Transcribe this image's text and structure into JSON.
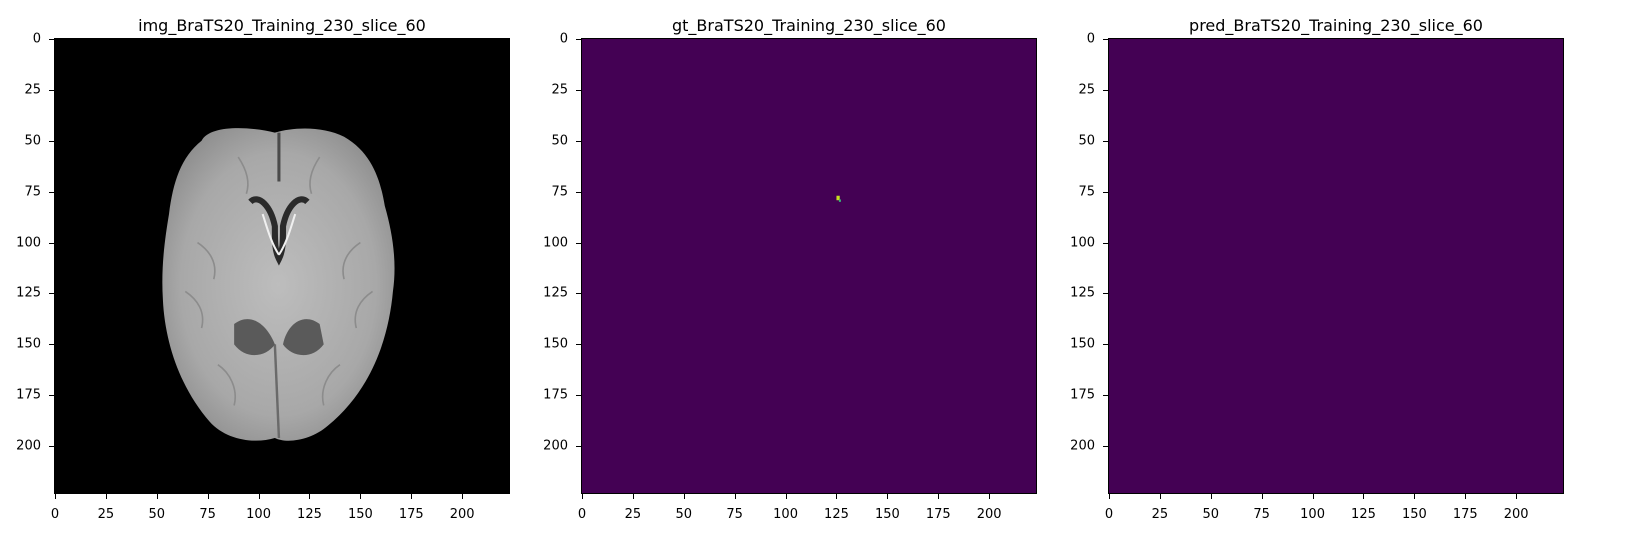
{
  "figure": {
    "panels": [
      {
        "id": "img",
        "title": "img_BraTS20_Training_230_slice_60",
        "content": "brain MRI slice (grayscale)",
        "colormap": "gray",
        "background": "#000000"
      },
      {
        "id": "gt",
        "title": "gt_BraTS20_Training_230_slice_60",
        "content": "ground truth mask",
        "colormap": "viridis",
        "background": "#440154",
        "highlight_color": "#c8e020",
        "highlight_point": {
          "x": 126,
          "y": 78
        }
      },
      {
        "id": "pred",
        "title": "pred_BraTS20_Training_230_slice_60",
        "content": "predicted mask (empty)",
        "colormap": "viridis",
        "background": "#440154"
      }
    ],
    "x_ticks": [
      "0",
      "25",
      "50",
      "75",
      "100",
      "125",
      "150",
      "175",
      "200"
    ],
    "y_ticks": [
      "0",
      "25",
      "50",
      "75",
      "100",
      "125",
      "150",
      "175",
      "200"
    ],
    "axis_range": [
      0,
      224
    ]
  }
}
